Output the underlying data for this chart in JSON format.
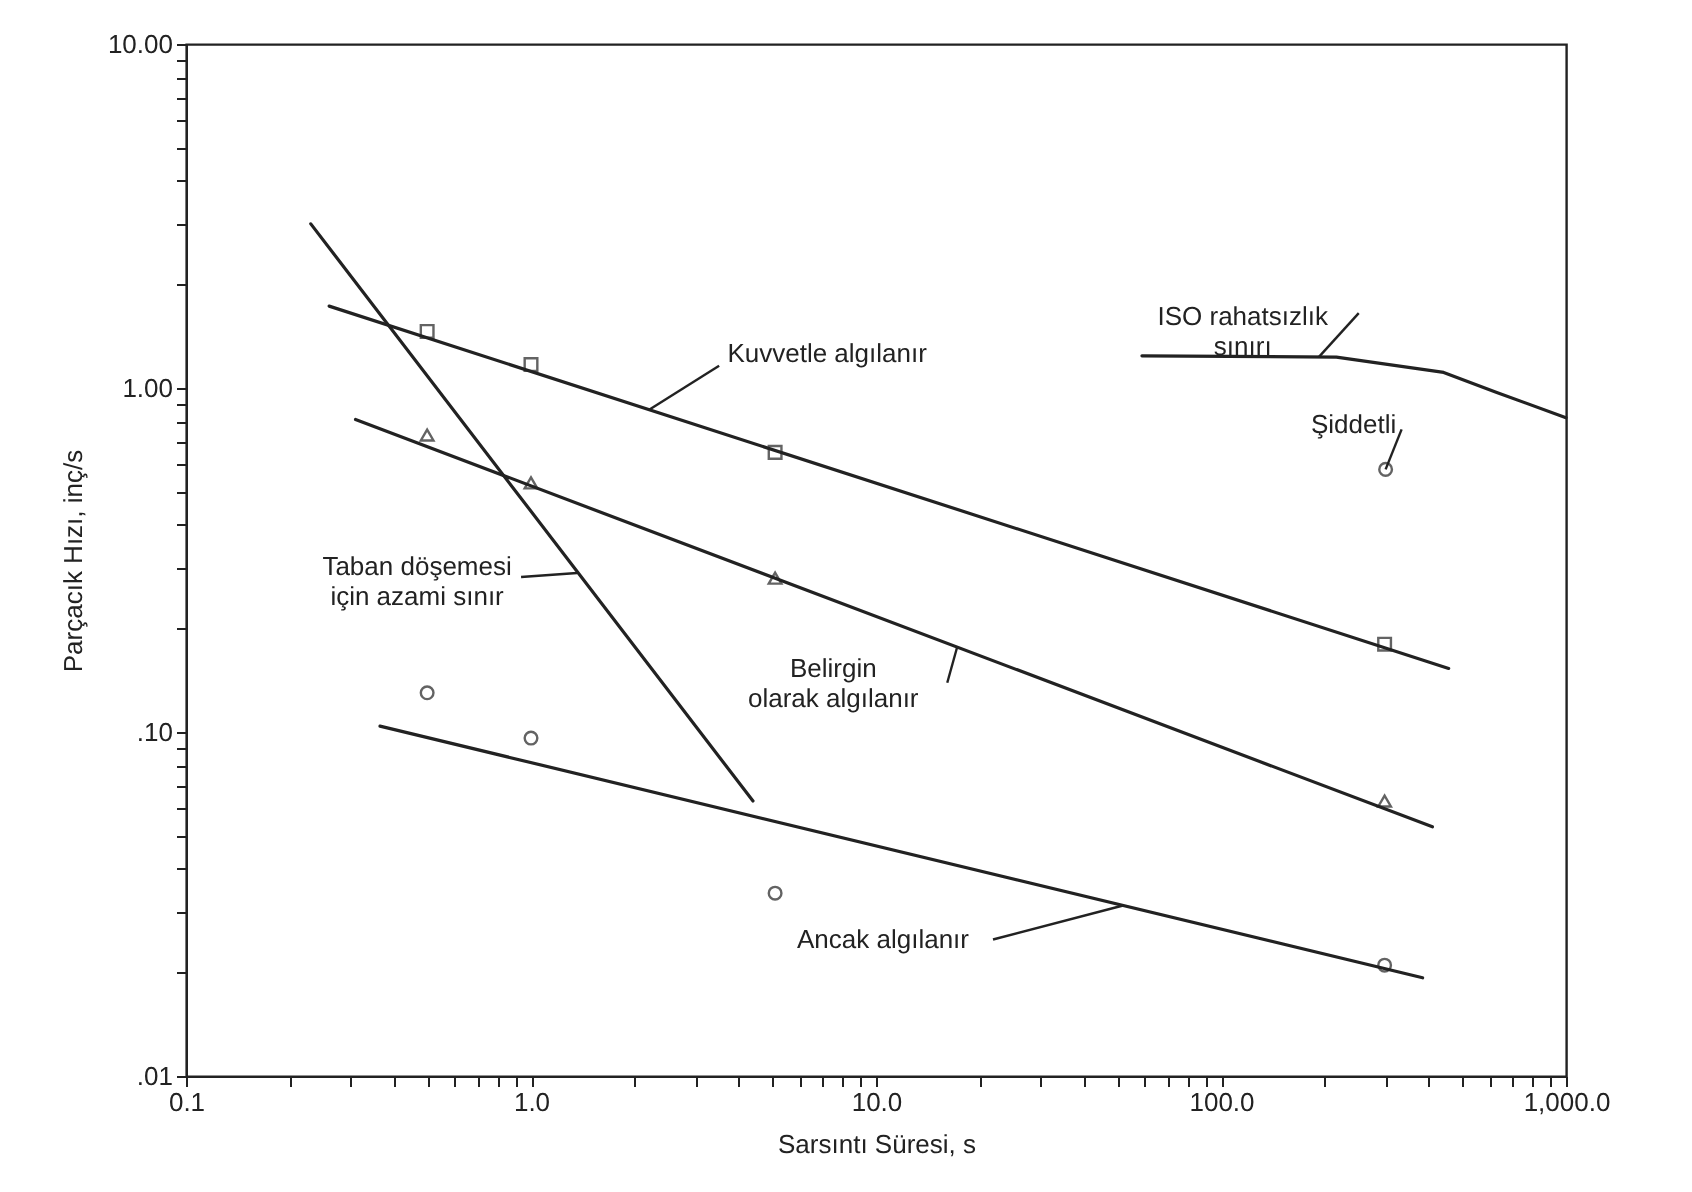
{
  "chart_data": {
    "type": "line",
    "xlabel": "Sarsıntı Süresi, s",
    "ylabel": "Parçacık Hızı, inç/s",
    "log": "xy",
    "grid": false,
    "line_style": "solid",
    "xlim": [
      0.1,
      1000
    ],
    "ylim": [
      0.01,
      10
    ],
    "xticks": [
      {
        "value": 0.1,
        "label": "0.1"
      },
      {
        "value": 0.2,
        "label": null
      },
      {
        "value": 0.3,
        "label": null
      },
      {
        "value": 0.4,
        "label": null
      },
      {
        "value": 0.5,
        "label": null
      },
      {
        "value": 0.6,
        "label": null
      },
      {
        "value": 0.7,
        "label": null
      },
      {
        "value": 0.8,
        "label": null
      },
      {
        "value": 0.9,
        "label": null
      },
      {
        "value": 1,
        "label": "1.0"
      },
      {
        "value": 2,
        "label": null
      },
      {
        "value": 3,
        "label": null
      },
      {
        "value": 4,
        "label": null
      },
      {
        "value": 5,
        "label": null
      },
      {
        "value": 6,
        "label": null
      },
      {
        "value": 7,
        "label": null
      },
      {
        "value": 8,
        "label": null
      },
      {
        "value": 9,
        "label": null
      },
      {
        "value": 10,
        "label": "10.0"
      },
      {
        "value": 20,
        "label": null
      },
      {
        "value": 30,
        "label": null
      },
      {
        "value": 40,
        "label": null
      },
      {
        "value": 50,
        "label": null
      },
      {
        "value": 60,
        "label": null
      },
      {
        "value": 70,
        "label": null
      },
      {
        "value": 80,
        "label": null
      },
      {
        "value": 90,
        "label": null
      },
      {
        "value": 100,
        "label": "100.0"
      },
      {
        "value": 200,
        "label": null
      },
      {
        "value": 300,
        "label": null
      },
      {
        "value": 400,
        "label": null
      },
      {
        "value": 500,
        "label": null
      },
      {
        "value": 600,
        "label": null
      },
      {
        "value": 700,
        "label": null
      },
      {
        "value": 800,
        "label": null
      },
      {
        "value": 900,
        "label": null
      },
      {
        "value": 1000,
        "label": "1,000.0"
      }
    ],
    "yticks": [
      {
        "value": 0.01,
        "label": ".01"
      },
      {
        "value": 0.02,
        "label": null
      },
      {
        "value": 0.03,
        "label": null
      },
      {
        "value": 0.04,
        "label": null
      },
      {
        "value": 0.05,
        "label": null
      },
      {
        "value": 0.06,
        "label": null
      },
      {
        "value": 0.07,
        "label": null
      },
      {
        "value": 0.08,
        "label": null
      },
      {
        "value": 0.09,
        "label": null
      },
      {
        "value": 0.1,
        "label": ".10"
      },
      {
        "value": 0.2,
        "label": null
      },
      {
        "value": 0.3,
        "label": null
      },
      {
        "value": 0.4,
        "label": null
      },
      {
        "value": 0.5,
        "label": null
      },
      {
        "value": 0.6,
        "label": null
      },
      {
        "value": 0.7,
        "label": null
      },
      {
        "value": 0.8,
        "label": null
      },
      {
        "value": 0.9,
        "label": null
      },
      {
        "value": 1,
        "label": "1.00"
      },
      {
        "value": 2,
        "label": null
      },
      {
        "value": 3,
        "label": null
      },
      {
        "value": 4,
        "label": null
      },
      {
        "value": 5,
        "label": null
      },
      {
        "value": 6,
        "label": null
      },
      {
        "value": 7,
        "label": null
      },
      {
        "value": 8,
        "label": null
      },
      {
        "value": 9,
        "label": null
      },
      {
        "value": 10,
        "label": "10.00"
      }
    ],
    "series": [
      {
        "color": "#222222",
        "x": [
          0.26,
          457
        ],
        "values": [
          1.73,
          0.153
        ]
      },
      {
        "color": "#222222",
        "x": [
          0.31,
          410
        ],
        "values": [
          0.81,
          0.053
        ]
      },
      {
        "color": "#222222",
        "x": [
          0.23,
          4.4
        ],
        "values": [
          3.0,
          0.063
        ]
      },
      {
        "color": "#222222",
        "x": [
          0.365,
          384
        ],
        "values": [
          0.104,
          0.0193
        ]
      },
      {
        "color": "#222222",
        "x": [
          59,
          216,
          442,
          630,
          1000
        ],
        "values": [
          1.24,
          1.23,
          1.11,
          0.97,
          0.82
        ]
      },
      {
        "type": "scatter",
        "marker": "square",
        "color": "#222222",
        "x": [
          0.5,
          1,
          5.1,
          298
        ],
        "values": [
          1.46,
          1.17,
          0.65,
          0.18
        ]
      },
      {
        "type": "scatter",
        "marker": "triangle",
        "color": "#222222",
        "x": [
          0.5,
          1,
          5.1,
          298
        ],
        "values": [
          0.73,
          0.53,
          0.28,
          0.063
        ]
      },
      {
        "type": "scatter",
        "marker": "circle",
        "color": "#222222",
        "x": [
          0.5,
          1,
          5.1,
          298,
          300
        ],
        "values": [
          0.13,
          0.096,
          0.034,
          0.021,
          0.58
        ]
      }
    ],
    "annotations": [
      {
        "text": "Kuvvetle algılanır",
        "x": 2.2,
        "y": 0.865
      },
      {
        "text": "ISO rahatsızlık\nsınırı",
        "x": 192,
        "y": 1.23
      },
      {
        "text": "Şiddetli",
        "x": 300,
        "y": 0.58
      },
      {
        "text": "Taban döşemesi\niçin azami sınır",
        "x": 1.36,
        "y": 0.29
      },
      {
        "text": "Belirgin\nolarak algılanır",
        "x": 17.2,
        "y": 0.177
      },
      {
        "text": "Ancak algılanır",
        "x": 52,
        "y": 0.0313
      }
    ]
  }
}
